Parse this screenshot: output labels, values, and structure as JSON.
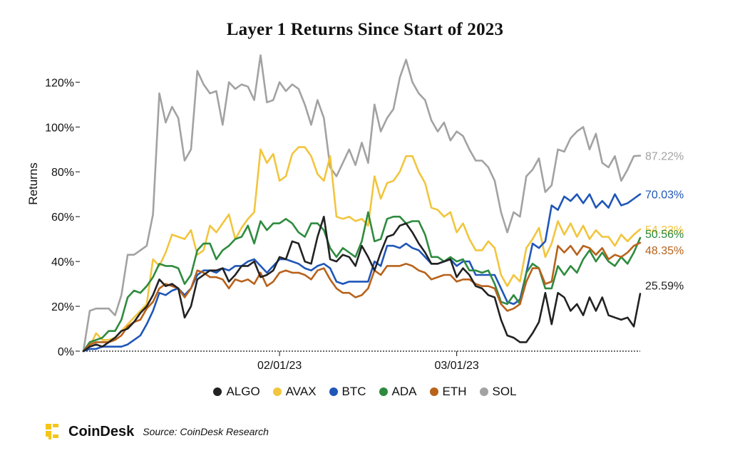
{
  "title": "Layer 1 Returns Since Start of 2023",
  "legend": [
    {
      "label": "ALGO",
      "color": "#222222"
    },
    {
      "label": "AVAX",
      "color": "#f2c53d"
    },
    {
      "label": "BTC",
      "color": "#1f56b8"
    },
    {
      "label": "ADA",
      "color": "#2e8b3e"
    },
    {
      "label": "ETH",
      "color": "#b8621b"
    },
    {
      "label": "SOL",
      "color": "#a2a2a2"
    }
  ],
  "footer": {
    "brand": "CoinDesk",
    "source": "Source: CoinDesk Research",
    "brand_color": "#f5c518"
  },
  "chart_data": {
    "type": "line",
    "title": "Layer 1 Returns Since Start of 2023",
    "xlabel": "",
    "ylabel": "Returns",
    "x_ticks": [
      "02/01/23",
      "03/01/23"
    ],
    "y_ticks": [
      "0%",
      "20%",
      "40%",
      "60%",
      "80%",
      "100%",
      "120%"
    ],
    "ylim": [
      0,
      130
    ],
    "grid": false,
    "legend_position": "bottom",
    "dates": [
      "2023-01-01",
      "2023-01-02",
      "2023-01-03",
      "2023-01-04",
      "2023-01-05",
      "2023-01-06",
      "2023-01-07",
      "2023-01-08",
      "2023-01-09",
      "2023-01-10",
      "2023-01-11",
      "2023-01-12",
      "2023-01-13",
      "2023-01-14",
      "2023-01-15",
      "2023-01-16",
      "2023-01-17",
      "2023-01-18",
      "2023-01-19",
      "2023-01-20",
      "2023-01-21",
      "2023-01-22",
      "2023-01-23",
      "2023-01-24",
      "2023-01-25",
      "2023-01-26",
      "2023-01-27",
      "2023-01-28",
      "2023-01-29",
      "2023-01-30",
      "2023-01-31",
      "2023-02-01",
      "2023-02-02",
      "2023-02-03",
      "2023-02-04",
      "2023-02-05",
      "2023-02-06",
      "2023-02-07",
      "2023-02-08",
      "2023-02-09",
      "2023-02-10",
      "2023-02-11",
      "2023-02-12",
      "2023-02-13",
      "2023-02-14",
      "2023-02-15",
      "2023-02-16",
      "2023-02-17",
      "2023-02-18",
      "2023-02-19",
      "2023-02-20",
      "2023-02-21",
      "2023-02-22",
      "2023-02-23",
      "2023-02-24",
      "2023-02-25",
      "2023-02-26",
      "2023-02-27",
      "2023-02-28",
      "2023-03-01",
      "2023-03-02",
      "2023-03-03",
      "2023-03-04",
      "2023-03-05",
      "2023-03-06",
      "2023-03-07",
      "2023-03-08",
      "2023-03-09",
      "2023-03-10",
      "2023-03-11",
      "2023-03-12",
      "2023-03-13",
      "2023-03-14",
      "2023-03-15",
      "2023-03-16",
      "2023-03-17",
      "2023-03-18",
      "2023-03-19",
      "2023-03-20",
      "2023-03-21",
      "2023-03-22",
      "2023-03-23",
      "2023-03-24",
      "2023-03-25",
      "2023-03-26",
      "2023-03-27",
      "2023-03-28",
      "2023-03-29",
      "2023-03-30"
    ],
    "series": [
      {
        "name": "SOL",
        "color": "#a2a2a2",
        "end_label": "87.22%",
        "values": [
          0,
          18,
          19,
          19,
          19,
          16,
          25,
          43,
          43,
          45,
          47,
          61,
          115,
          102,
          109,
          104,
          85,
          90,
          125,
          119,
          115,
          116,
          101,
          120,
          117,
          119,
          118,
          112,
          132,
          111,
          112,
          120,
          116,
          119,
          117,
          110,
          101,
          112,
          104,
          82,
          78,
          84,
          90,
          83,
          93,
          84,
          110,
          98,
          104,
          108,
          122,
          130,
          120,
          115,
          112,
          103,
          98,
          102,
          94,
          98,
          96,
          90,
          85,
          85,
          82,
          76,
          62,
          53,
          62,
          60,
          78,
          81,
          86,
          71,
          74,
          90,
          89,
          95,
          98,
          100,
          90,
          97,
          84,
          82,
          87,
          76,
          81,
          87,
          87.22
        ]
      },
      {
        "name": "AVAX",
        "color": "#f2c53d",
        "end_label": "54.33%",
        "values": [
          0,
          2,
          8,
          5,
          5,
          6,
          9,
          12,
          15,
          18,
          21,
          41,
          38,
          44,
          52,
          51,
          50,
          54,
          43,
          45,
          56,
          53,
          57,
          61,
          50,
          55,
          59,
          62,
          90,
          84,
          88,
          76,
          78,
          88,
          91,
          91,
          87,
          79,
          76,
          87,
          60,
          59,
          60,
          58,
          59,
          56,
          78,
          68,
          75,
          76,
          80,
          87,
          87,
          80,
          75,
          64,
          63,
          60,
          62,
          53,
          57,
          50,
          45,
          45,
          49,
          46,
          34,
          29,
          34,
          31,
          46,
          50,
          55,
          42,
          48,
          58,
          52,
          57,
          51,
          56,
          50,
          54,
          51,
          51,
          47,
          52,
          49,
          52,
          54.33
        ]
      },
      {
        "name": "BTC",
        "color": "#1f56b8",
        "end_label": "70.03%",
        "values": [
          0,
          1,
          1,
          2,
          2,
          2,
          2,
          3,
          5,
          7,
          12,
          18,
          26,
          25,
          27,
          28,
          25,
          28,
          34,
          36,
          36,
          35,
          37,
          36,
          38,
          38,
          40,
          41,
          38,
          35,
          38,
          41,
          41,
          40,
          39,
          37,
          36,
          38,
          39,
          37,
          31,
          30,
          31,
          31,
          31,
          31,
          40,
          38,
          47,
          47,
          46,
          48,
          46,
          45,
          42,
          39,
          39,
          40,
          41,
          38,
          40,
          40,
          34,
          34,
          34,
          34,
          28,
          22,
          21,
          23,
          35,
          48,
          46,
          49,
          65,
          63,
          69,
          67,
          70,
          66,
          70,
          64,
          67,
          64,
          70,
          65,
          66,
          68,
          70.03
        ]
      },
      {
        "name": "ADA",
        "color": "#2e8b3e",
        "end_label": "50.56%",
        "values": [
          0,
          4,
          5,
          6,
          9,
          9,
          14,
          24,
          27,
          26,
          29,
          33,
          39,
          38,
          38,
          37,
          30,
          34,
          45,
          48,
          48,
          41,
          45,
          47,
          50,
          51,
          56,
          48,
          58,
          54,
          57,
          57,
          59,
          57,
          53,
          51,
          57,
          57,
          54,
          46,
          42,
          46,
          44,
          42,
          49,
          62,
          49,
          50,
          59,
          60,
          60,
          57,
          58,
          58,
          52,
          42,
          42,
          40,
          42,
          40,
          41,
          36,
          36,
          35,
          36,
          30,
          22,
          21,
          25,
          21,
          35,
          39,
          37,
          28,
          28,
          38,
          34,
          38,
          35,
          41,
          45,
          40,
          44,
          40,
          38,
          42,
          39,
          44,
          50.56
        ]
      },
      {
        "name": "ETH",
        "color": "#b8621b",
        "end_label": "48.35%",
        "values": [
          0,
          3,
          4,
          4,
          4,
          5,
          7,
          11,
          13,
          14,
          19,
          22,
          28,
          30,
          29,
          28,
          24,
          28,
          36,
          35,
          33,
          33,
          32,
          28,
          32,
          31,
          32,
          30,
          35,
          29,
          31,
          35,
          36,
          35,
          35,
          34,
          32,
          36,
          37,
          32,
          28,
          26,
          26,
          24,
          25,
          28,
          36,
          34,
          38,
          38,
          38,
          39,
          38,
          36,
          35,
          32,
          33,
          34,
          34,
          31,
          32,
          32,
          30,
          29,
          29,
          28,
          21,
          18,
          19,
          21,
          31,
          37,
          37,
          30,
          31,
          47,
          44,
          47,
          43,
          47,
          46,
          43,
          46,
          41,
          43,
          42,
          44,
          47,
          48.35
        ]
      },
      {
        "name": "ALGO",
        "color": "#222222",
        "end_label": "25.59%",
        "values": [
          0,
          2,
          3,
          2,
          4,
          6,
          9,
          10,
          13,
          17,
          20,
          25,
          32,
          29,
          30,
          28,
          15,
          20,
          32,
          34,
          36,
          36,
          37,
          31,
          34,
          38,
          38,
          40,
          33,
          34,
          36,
          42,
          41,
          49,
          48,
          40,
          39,
          51,
          60,
          41,
          40,
          43,
          42,
          38,
          47,
          42,
          36,
          44,
          51,
          52,
          56,
          57,
          53,
          48,
          44,
          39,
          39,
          40,
          41,
          33,
          37,
          34,
          29,
          28,
          25,
          24,
          14,
          7,
          6,
          4,
          4,
          8,
          13,
          26,
          12,
          26,
          24,
          18,
          21,
          16,
          24,
          18,
          24,
          16,
          15,
          14,
          15,
          11,
          25.59
        ]
      }
    ]
  }
}
